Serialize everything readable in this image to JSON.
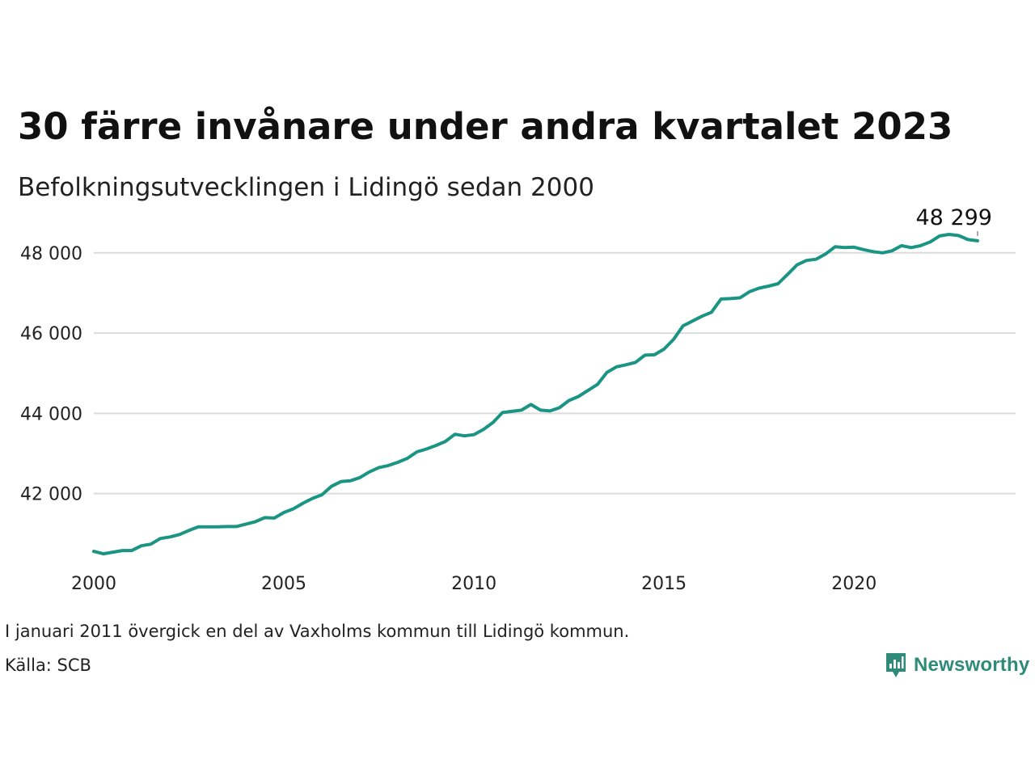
{
  "title": "30 färre invånare under andra kvartalet 2023",
  "subtitle": "Befolkningsutvecklingen i Lidingö sedan 2000",
  "note": "I januari 2011 övergick en del av Vaxholms kommun till Lidingö kommun.",
  "source": "Källa: SCB",
  "brand": {
    "name": "Newsworthy",
    "icon": "newsworthy-logo-icon",
    "color": "#2e8b7a"
  },
  "chart_data": {
    "type": "line",
    "title": "30 färre invånare under andra kvartalet 2023",
    "subtitle": "Befolkningsutvecklingen i Lidingö sedan 2000",
    "xlabel": "",
    "ylabel": "",
    "xlim": [
      2000,
      2024.25
    ],
    "ylim": [
      40200,
      48600
    ],
    "x_ticks": [
      2000,
      2005,
      2010,
      2015,
      2020
    ],
    "x_tick_labels": [
      "2000",
      "2005",
      "2010",
      "2015",
      "2020"
    ],
    "y_ticks": [
      42000,
      44000,
      46000,
      48000
    ],
    "y_tick_labels": [
      "42 000",
      "44 000",
      "46 000",
      "48 000"
    ],
    "grid": "horizontal",
    "line_color": "#1a9483",
    "end_label": "48 299",
    "series": [
      {
        "x": [
          2000.0,
          2000.25,
          2000.5,
          2000.75,
          2001.0,
          2001.25,
          2001.5,
          2001.75,
          2002.0,
          2002.25,
          2002.5,
          2002.75,
          2003.0,
          2003.25,
          2003.5,
          2003.75,
          2004.0,
          2004.25,
          2004.5,
          2004.75,
          2005.0,
          2005.25,
          2005.5,
          2005.75,
          2006.0,
          2006.25,
          2006.5,
          2006.75,
          2007.0,
          2007.25,
          2007.5,
          2007.75,
          2008.0,
          2008.25,
          2008.5,
          2008.75,
          2009.0,
          2009.25,
          2009.5,
          2009.75,
          2010.0,
          2010.25,
          2010.5,
          2010.75,
          2011.0,
          2011.25,
          2011.5,
          2011.75,
          2012.0,
          2012.25,
          2012.5,
          2012.75,
          2013.0,
          2013.25,
          2013.5,
          2013.75,
          2014.0,
          2014.25,
          2014.5,
          2014.75,
          2015.0,
          2015.25,
          2015.5,
          2015.75,
          2016.0,
          2016.25,
          2016.5,
          2016.75,
          2017.0,
          2017.25,
          2017.5,
          2017.75,
          2018.0,
          2018.25,
          2018.5,
          2018.75,
          2019.0,
          2019.25,
          2019.5,
          2019.75,
          2020.0,
          2020.25,
          2020.5,
          2020.75,
          2021.0,
          2021.25,
          2021.5,
          2021.75,
          2022.0,
          2022.25,
          2022.5,
          2022.75,
          2023.0,
          2023.25
        ],
        "values": [
          40560,
          40500,
          40540,
          40580,
          40580,
          40700,
          40740,
          40880,
          40920,
          40980,
          41080,
          41170,
          41170,
          41170,
          41180,
          41180,
          41240,
          41300,
          41400,
          41390,
          41530,
          41620,
          41760,
          41880,
          41970,
          42180,
          42300,
          42320,
          42400,
          42540,
          42650,
          42700,
          42780,
          42880,
          43040,
          43110,
          43200,
          43300,
          43480,
          43440,
          43470,
          43600,
          43770,
          44020,
          44050,
          44080,
          44220,
          44080,
          44060,
          44140,
          44320,
          44420,
          44570,
          44720,
          45020,
          45160,
          45210,
          45270,
          45450,
          45460,
          45600,
          45840,
          46180,
          46300,
          46420,
          46520,
          46850,
          46860,
          46880,
          47030,
          47120,
          47170,
          47230,
          47460,
          47700,
          47810,
          47840,
          47970,
          48150,
          48130,
          48140,
          48080,
          48030,
          48000,
          48050,
          48180,
          48130,
          48180,
          48270,
          48420,
          48460,
          48430,
          48330,
          48299
        ]
      }
    ]
  }
}
